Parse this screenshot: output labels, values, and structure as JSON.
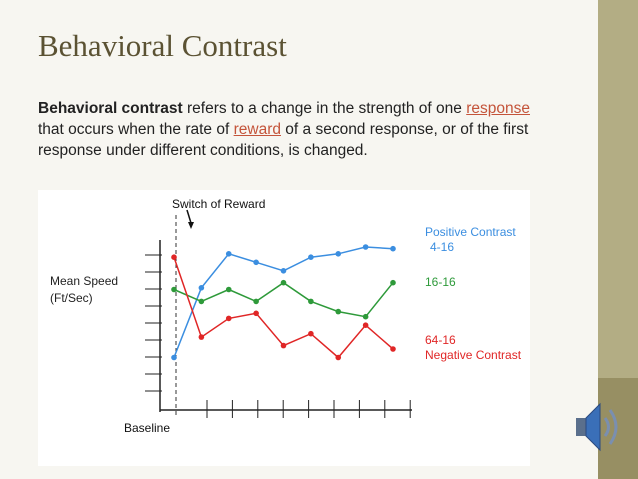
{
  "slide": {
    "title": "Behavioral Contrast",
    "body": [
      {
        "text": "Behavioral contrast",
        "kind": "bold"
      },
      {
        "text": " refers to a change in the strength of one ",
        "kind": "plain"
      },
      {
        "text": "response",
        "kind": "link"
      },
      {
        "text": " that occurs when the rate of ",
        "kind": "plain"
      },
      {
        "text": "reward",
        "kind": "link"
      },
      {
        "text": " of a second response, or of the first response under different conditions, is changed.",
        "kind": "plain"
      }
    ]
  },
  "chart_data": {
    "type": "line",
    "annotation": "Switch of Reward",
    "y_label": "Mean Speed (Ft/Sec)",
    "x_label": "Baseline",
    "categories": [
      null,
      null,
      null,
      null,
      null,
      null,
      null,
      null,
      null
    ],
    "ylim": [
      0,
      10
    ],
    "series": [
      {
        "name": "4-16",
        "note": "Positive Contrast",
        "color": "#3b8ee0",
        "values": [
          2.5,
          6.6,
          8.6,
          8.1,
          7.6,
          8.4,
          8.6,
          9.0,
          8.9
        ]
      },
      {
        "name": "16-16",
        "color": "#2e9a3a",
        "values": [
          6.5,
          5.8,
          6.5,
          5.8,
          6.9,
          5.8,
          5.2,
          4.9,
          6.9
        ]
      },
      {
        "name": "64-16",
        "note": "Negative Contrast",
        "color": "#e02626",
        "values": [
          8.4,
          3.7,
          4.8,
          5.1,
          3.2,
          3.9,
          2.5,
          4.4,
          3.0
        ]
      }
    ]
  }
}
